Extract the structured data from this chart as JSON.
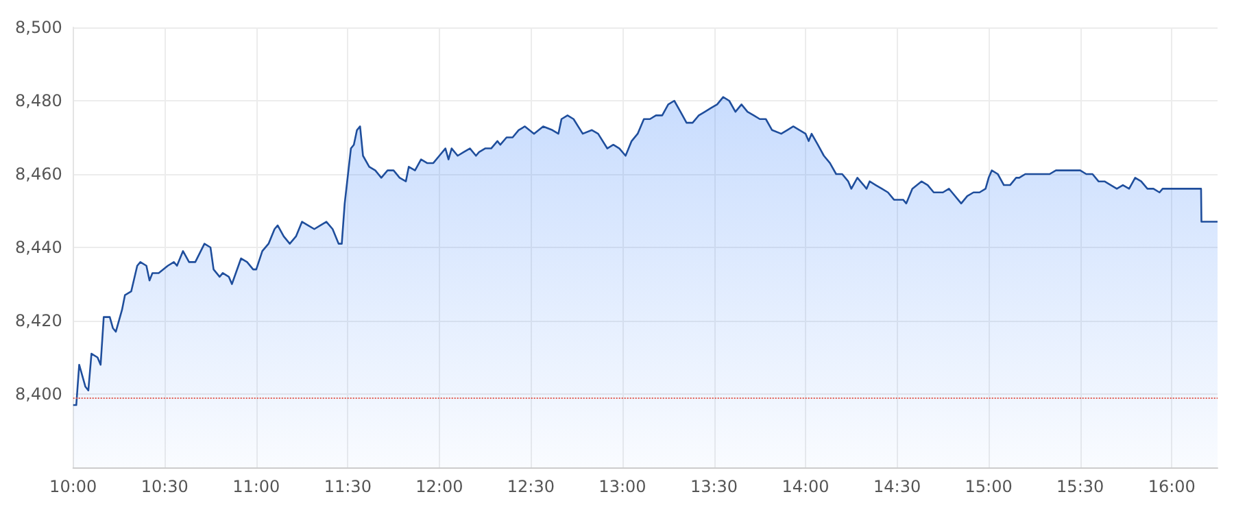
{
  "chart_data": {
    "type": "area",
    "color": "#1f4e9c",
    "x": [
      10,
      10.017,
      10.033,
      10.067,
      10.083,
      10.1,
      10.133,
      10.15,
      10.167,
      10.2,
      10.217,
      10.233,
      10.267,
      10.283,
      10.317,
      10.35,
      10.367,
      10.4,
      10.417,
      10.433,
      10.467,
      10.517,
      10.55,
      10.567,
      10.6,
      10.633,
      10.667,
      10.717,
      10.75,
      10.767,
      10.8,
      10.817,
      10.85,
      10.867,
      10.917,
      10.95,
      10.983,
      11,
      11.033,
      11.067,
      11.1,
      11.117,
      11.15,
      11.183,
      11.217,
      11.25,
      11.283,
      11.317,
      11.35,
      11.383,
      11.417,
      11.45,
      11.467,
      11.483,
      11.517,
      11.533,
      11.55,
      11.567,
      11.583,
      11.617,
      11.65,
      11.683,
      11.717,
      11.75,
      11.783,
      11.817,
      11.833,
      11.867,
      11.9,
      11.933,
      11.967,
      12,
      12.033,
      12.05,
      12.067,
      12.1,
      12.133,
      12.167,
      12.2,
      12.217,
      12.25,
      12.283,
      12.317,
      12.333,
      12.367,
      12.4,
      12.433,
      12.467,
      12.517,
      12.567,
      12.617,
      12.65,
      12.667,
      12.7,
      12.733,
      12.783,
      12.833,
      12.867,
      12.917,
      12.95,
      12.983,
      13.017,
      13.05,
      13.083,
      13.117,
      13.15,
      13.183,
      13.217,
      13.25,
      13.283,
      13.317,
      13.35,
      13.383,
      13.417,
      13.45,
      13.483,
      13.517,
      13.55,
      13.583,
      13.617,
      13.65,
      13.683,
      13.717,
      13.75,
      13.783,
      13.817,
      13.867,
      13.9,
      13.933,
      13.967,
      14,
      14.017,
      14.033,
      14.067,
      14.1,
      14.133,
      14.167,
      14.2,
      14.233,
      14.25,
      14.283,
      14.317,
      14.333,
      14.35,
      14.383,
      14.417,
      14.45,
      14.483,
      14.533,
      14.55,
      14.583,
      14.633,
      14.667,
      14.7,
      14.75,
      14.783,
      14.8,
      14.833,
      14.85,
      14.883,
      14.917,
      14.95,
      14.983,
      15,
      15.017,
      15.05,
      15.083,
      15.117,
      15.15,
      15.167,
      15.2,
      15.233,
      15.267,
      15.3,
      15.333,
      15.367,
      15.4,
      15.433,
      15.467,
      15.5,
      15.533,
      15.567,
      15.6,
      15.633,
      15.667,
      15.7,
      15.733,
      15.767,
      15.8,
      15.833,
      15.867,
      15.9,
      15.933,
      15.95,
      16.16,
      16.162,
      16.25
    ],
    "values": [
      8397,
      8397,
      8408,
      8402,
      8401,
      8411,
      8410,
      8408,
      8421,
      8421,
      8418,
      8417,
      8423,
      8427,
      8428,
      8435,
      8436,
      8435,
      8431,
      8433,
      8433,
      8435,
      8436,
      8435,
      8439,
      8436,
      8436,
      8441,
      8440,
      8434,
      8432,
      8433,
      8432,
      8430,
      8437,
      8436,
      8434,
      8434,
      8439,
      8441,
      8445,
      8446,
      8443,
      8441,
      8443,
      8447,
      8446,
      8445,
      8446,
      8447,
      8445,
      8441,
      8441,
      8452,
      8467,
      8468,
      8472,
      8473,
      8465,
      8462,
      8461,
      8459,
      8461,
      8461,
      8459,
      8458,
      8462,
      8461,
      8464,
      8463,
      8463,
      8465,
      8467,
      8464,
      8467,
      8465,
      8466,
      8467,
      8465,
      8466,
      8467,
      8467,
      8469,
      8468,
      8470,
      8470,
      8472,
      8473,
      8471,
      8473,
      8472,
      8471,
      8475,
      8476,
      8475,
      8471,
      8472,
      8471,
      8467,
      8468,
      8467,
      8465,
      8469,
      8471,
      8475,
      8475,
      8476,
      8476,
      8479,
      8480,
      8477,
      8474,
      8474,
      8476,
      8477,
      8478,
      8479,
      8481,
      8480,
      8477,
      8479,
      8477,
      8476,
      8475,
      8475,
      8472,
      8471,
      8472,
      8473,
      8472,
      8471,
      8469,
      8471,
      8468,
      8465,
      8463,
      8460,
      8460,
      8458,
      8456,
      8459,
      8457,
      8456,
      8458,
      8457,
      8456,
      8455,
      8453,
      8453,
      8452,
      8456,
      8458,
      8457,
      8455,
      8455,
      8456,
      8455,
      8453,
      8452,
      8454,
      8455,
      8455,
      8456,
      8459,
      8461,
      8460,
      8457,
      8457,
      8459,
      8459,
      8460,
      8460,
      8460,
      8460,
      8460,
      8461,
      8461,
      8461,
      8461,
      8461,
      8460,
      8460,
      8458,
      8458,
      8457,
      8456,
      8457,
      8456,
      8459,
      8458,
      8456,
      8456,
      8455,
      8456,
      8456,
      8447,
      8447
    ],
    "xlim": [
      10,
      16.25
    ],
    "xticks": [
      {
        "value": 10,
        "label": "10:00"
      },
      {
        "value": 10.5,
        "label": "10:30"
      },
      {
        "value": 11,
        "label": "11:00"
      },
      {
        "value": 11.5,
        "label": "11:30"
      },
      {
        "value": 12,
        "label": "12:00"
      },
      {
        "value": 12.5,
        "label": "12:30"
      },
      {
        "value": 13,
        "label": "13:00"
      },
      {
        "value": 13.5,
        "label": "13:30"
      },
      {
        "value": 14,
        "label": "14:00"
      },
      {
        "value": 14.5,
        "label": "14:30"
      },
      {
        "value": 15,
        "label": "15:00"
      },
      {
        "value": 15.5,
        "label": "15:30"
      },
      {
        "value": 16,
        "label": "16:00"
      }
    ],
    "ylim": [
      8380,
      8500
    ],
    "yticks": [
      {
        "value": 8400,
        "label": "8,400"
      },
      {
        "value": 8420,
        "label": "8,420"
      },
      {
        "value": 8440,
        "label": "8,440"
      },
      {
        "value": 8460,
        "label": "8,460"
      },
      {
        "value": 8480,
        "label": "8,480"
      },
      {
        "value": 8500,
        "label": "8,500"
      }
    ],
    "grid": true,
    "ref_lines": [
      {
        "axis": "y",
        "value": 8399,
        "color": "#e05a4e",
        "line_style": "dotted"
      }
    ]
  }
}
